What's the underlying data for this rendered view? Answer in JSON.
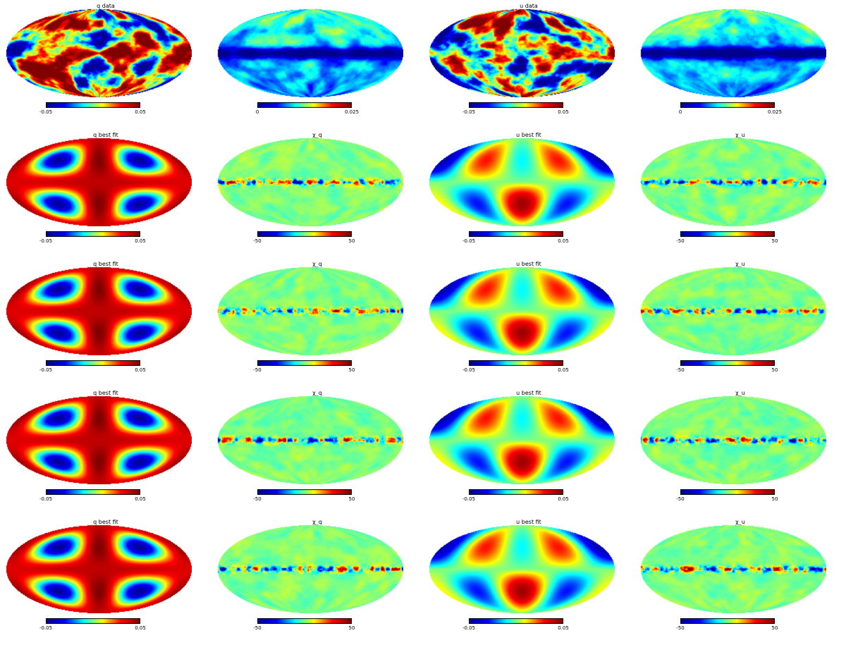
{
  "panels": [
    {
      "title": "q data",
      "kind": "data_q",
      "tick_min": "-0.05",
      "tick_max": "0.05"
    },
    {
      "title": "",
      "kind": "intensity",
      "tick_min": "0",
      "tick_max": "0.025"
    },
    {
      "title": "u data",
      "kind": "data_u",
      "tick_min": "-0.05",
      "tick_max": "0.05"
    },
    {
      "title": "",
      "kind": "intensity",
      "tick_min": "0",
      "tick_max": "0.025"
    },
    {
      "title": "q best fit",
      "kind": "fit_q",
      "tick_min": "-0.05",
      "tick_max": "0.05"
    },
    {
      "title": "χ_q",
      "kind": "residual",
      "tick_min": "-50",
      "tick_max": "50"
    },
    {
      "title": "u best fit",
      "kind": "fit_u",
      "tick_min": "-0.05",
      "tick_max": "0.05"
    },
    {
      "title": "χ_u",
      "kind": "residual",
      "tick_min": "-50",
      "tick_max": "50"
    },
    {
      "title": "q best fit",
      "kind": "fit_q",
      "tick_min": "-0.05",
      "tick_max": "0.05"
    },
    {
      "title": "χ_q",
      "kind": "residual",
      "tick_min": "-50",
      "tick_max": "50"
    },
    {
      "title": "u best fit",
      "kind": "fit_u",
      "tick_min": "-0.05",
      "tick_max": "0.05"
    },
    {
      "title": "χ_u",
      "kind": "residual",
      "tick_min": "-50",
      "tick_max": "50"
    },
    {
      "title": "q best fit",
      "kind": "fit_q",
      "tick_min": "-0.05",
      "tick_max": "0.05"
    },
    {
      "title": "χ_q",
      "kind": "residual",
      "tick_min": "-50",
      "tick_max": "50"
    },
    {
      "title": "u best fit",
      "kind": "fit_u",
      "tick_min": "-0.05",
      "tick_max": "0.05"
    },
    {
      "title": "χ_u",
      "kind": "residual",
      "tick_min": "-50",
      "tick_max": "50"
    },
    {
      "title": "q best fit",
      "kind": "fit_q",
      "tick_min": "-0.05",
      "tick_max": "0.05"
    },
    {
      "title": "χ_q",
      "kind": "residual",
      "tick_min": "-50",
      "tick_max": "50"
    },
    {
      "title": "u best fit",
      "kind": "fit_u",
      "tick_min": "-0.05",
      "tick_max": "0.05"
    },
    {
      "title": "χ_u",
      "kind": "residual",
      "tick_min": "-50",
      "tick_max": "50"
    }
  ],
  "colormap": [
    "#00008f",
    "#0000ff",
    "#00ffff",
    "#ffff00",
    "#ff0000",
    "#800000"
  ],
  "colors": {
    "background": "#ffffff",
    "map_outline": "#dddddd"
  }
}
